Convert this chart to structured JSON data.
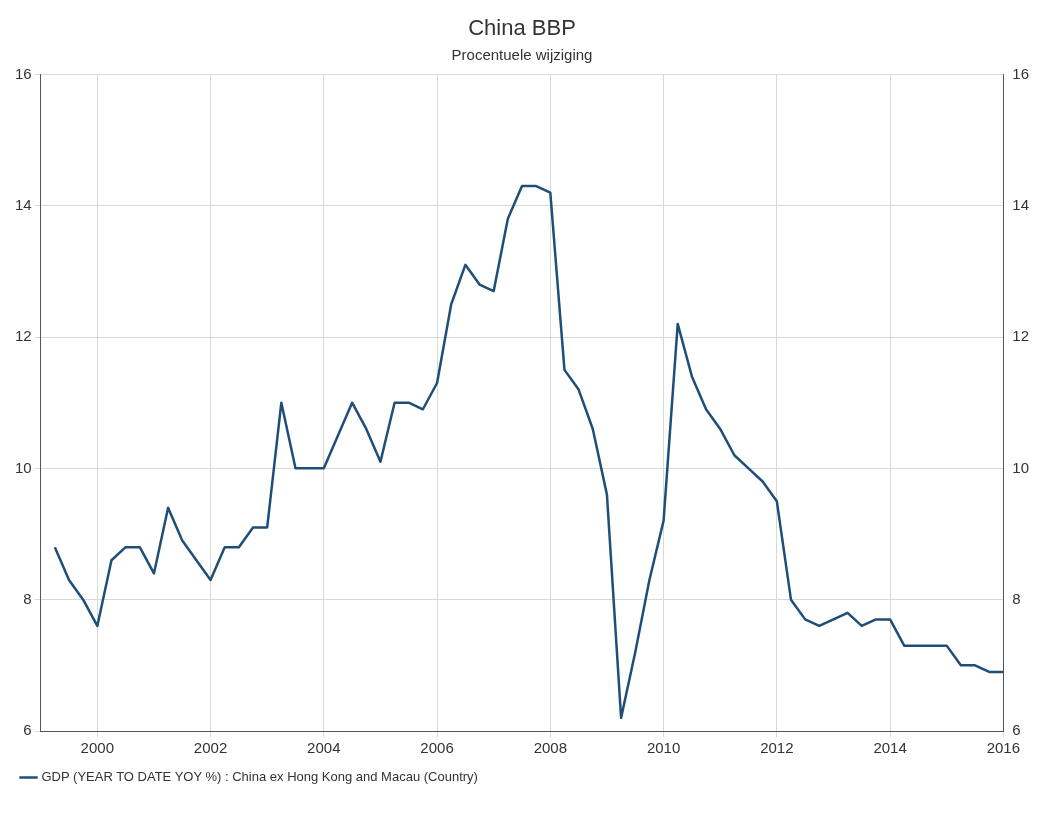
{
  "chart_data": {
    "type": "line",
    "title": "China BBP",
    "subtitle": "Procentuele wijziging",
    "x": [
      1999.25,
      1999.5,
      1999.75,
      2000.0,
      2000.25,
      2000.5,
      2000.75,
      2001.0,
      2001.25,
      2001.5,
      2001.75,
      2002.0,
      2002.25,
      2002.5,
      2002.75,
      2003.0,
      2003.25,
      2003.5,
      2003.75,
      2004.0,
      2004.25,
      2004.5,
      2004.75,
      2005.0,
      2005.25,
      2005.5,
      2005.75,
      2006.0,
      2006.25,
      2006.5,
      2006.75,
      2007.0,
      2007.25,
      2007.5,
      2007.75,
      2008.0,
      2008.25,
      2008.5,
      2008.75,
      2009.0,
      2009.25,
      2009.5,
      2009.75,
      2010.0,
      2010.25,
      2010.5,
      2010.75,
      2011.0,
      2011.25,
      2011.5,
      2011.75,
      2012.0,
      2012.25,
      2012.5,
      2012.75,
      2013.0,
      2013.25,
      2013.5,
      2013.75,
      2014.0,
      2014.25,
      2014.5,
      2014.75,
      2015.0,
      2015.25,
      2015.5,
      2015.75,
      2016.0
    ],
    "series": [
      {
        "name": "GDP (YEAR TO DATE YOY %) : China ex Hong Kong and Macau (Country)",
        "color": "#1f4e79",
        "values": [
          8.8,
          8.3,
          8.0,
          7.6,
          8.6,
          8.8,
          8.8,
          8.4,
          9.4,
          8.9,
          8.6,
          8.3,
          8.8,
          8.8,
          9.1,
          9.1,
          11.0,
          10.0,
          10.0,
          10.0,
          10.5,
          11.0,
          10.6,
          10.1,
          11.0,
          11.0,
          10.9,
          11.3,
          12.5,
          13.1,
          12.8,
          12.7,
          13.8,
          14.3,
          14.3,
          14.2,
          11.5,
          11.2,
          10.6,
          9.6,
          6.2,
          7.2,
          8.3,
          9.2,
          12.2,
          11.4,
          10.9,
          10.6,
          10.2,
          10.0,
          9.8,
          9.5,
          8.0,
          7.7,
          7.6,
          7.7,
          7.8,
          7.6,
          7.7,
          7.7,
          7.3,
          7.3,
          7.3,
          7.3,
          7.0,
          7.0,
          6.9,
          6.9
        ]
      }
    ],
    "xlim": [
      1999,
      2016
    ],
    "xticks": [
      2000,
      2002,
      2004,
      2006,
      2008,
      2010,
      2012,
      2014,
      2016
    ],
    "ylim": [
      6,
      16
    ],
    "yticks": [
      6,
      8,
      10,
      12,
      14,
      16
    ],
    "y2lim": [
      6,
      16
    ],
    "y2ticks": [
      6,
      8,
      10,
      12,
      14,
      16
    ],
    "grid": true,
    "legend": "bottom left",
    "marker": "none",
    "line_style": "solid"
  }
}
